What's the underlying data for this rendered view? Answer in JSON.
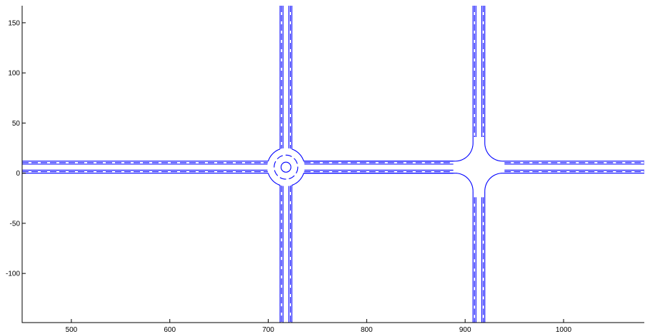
{
  "chart_data": {
    "type": "line",
    "title": "",
    "xlabel": "",
    "ylabel": "",
    "xlim": [
      450,
      1082
    ],
    "ylim": [
      -149,
      167
    ],
    "xticks": [
      500,
      600,
      700,
      800,
      900,
      1000
    ],
    "yticks": [
      -100,
      -50,
      0,
      50,
      100,
      150
    ],
    "xtick_labels": [
      "500",
      "600",
      "700",
      "800",
      "900",
      "1000"
    ],
    "ytick_labels": [
      "-100",
      "-50",
      "0",
      "50",
      "100",
      "150"
    ],
    "grid": false,
    "legend": "none",
    "line_color": "#0000ff",
    "road_network": {
      "horizontal_road": {
        "solid_y": [
          0,
          3,
          9,
          12
        ],
        "dashed_y": [
          1.5,
          10.5
        ],
        "divider_y": 6
      },
      "vertical_road_1": {
        "solid_x": [
          712,
          715,
          721,
          724
        ],
        "dashed_x": [
          713.5,
          722.5
        ]
      },
      "vertical_road_2": {
        "solid_x": [
          908,
          911,
          917,
          920
        ],
        "dashed_x": [
          909.5,
          918.5
        ]
      },
      "roundabout": {
        "center": [
          718,
          6
        ],
        "outer_radius": 19,
        "dashed_radius": 12,
        "island_radius": 5
      },
      "intersection": {
        "center": [
          914,
          6
        ],
        "corner_radius": 18
      }
    }
  }
}
